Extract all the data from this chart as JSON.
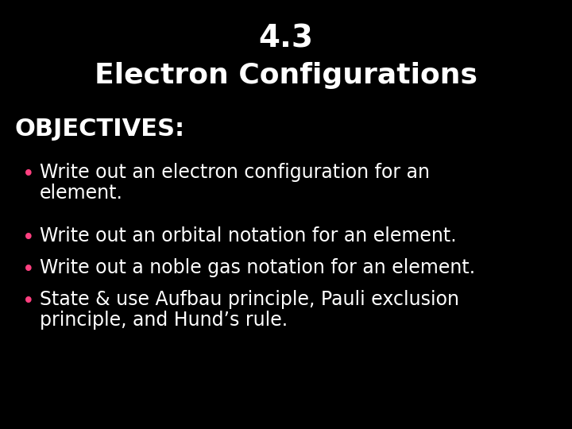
{
  "background_color": "#000000",
  "title_line1": "4.3",
  "title_line2": "Electron Configurations",
  "title_color": "#ffffff",
  "title_fontsize1": 28,
  "title_fontsize2": 26,
  "title_fontweight": "bold",
  "objectives_label": "OBJECTIVES:",
  "objectives_color": "#ffffff",
  "objectives_fontsize": 22,
  "objectives_fontweight": "bold",
  "bullet_color": "#ff4080",
  "bullet_text_color": "#ffffff",
  "bullet_fontsize": 17,
  "bullet_items": [
    [
      "Write out an electron configuration for an",
      "element."
    ],
    [
      "Write out an orbital notation for an element."
    ],
    [
      "Write out a noble gas notation for an element."
    ],
    [
      "State & use Aufbau principle, Pauli exclusion",
      "principle, and Hund’s rule."
    ]
  ]
}
